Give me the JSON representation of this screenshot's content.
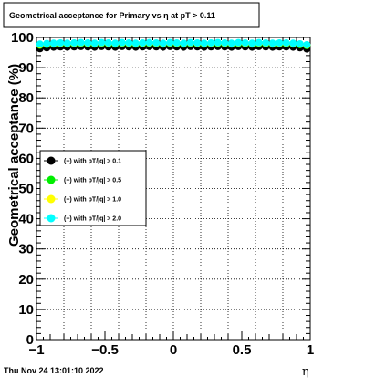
{
  "chart_data": {
    "type": "scatter",
    "title": "Geometrical acceptance for Primary vs   η at pT > 0.11",
    "xlabel": "η",
    "ylabel": "Geometrical acceptance (%)",
    "xlim": [
      -1,
      1
    ],
    "ylim": [
      0,
      100
    ],
    "x_ticks": [
      "−1",
      "−0.5",
      "0",
      "0.5",
      "1"
    ],
    "y_ticks": [
      "0",
      "10",
      "20",
      "30",
      "40",
      "50",
      "60",
      "70",
      "80",
      "90",
      "100"
    ],
    "grid": true,
    "legend_position": "center-left",
    "x": [
      -0.975,
      -0.925,
      -0.875,
      -0.825,
      -0.775,
      -0.725,
      -0.675,
      -0.625,
      -0.575,
      -0.525,
      -0.475,
      -0.425,
      -0.375,
      -0.325,
      -0.275,
      -0.225,
      -0.175,
      -0.125,
      -0.075,
      -0.025,
      0.025,
      0.075,
      0.125,
      0.175,
      0.225,
      0.275,
      0.325,
      0.375,
      0.425,
      0.475,
      0.525,
      0.575,
      0.625,
      0.675,
      0.725,
      0.775,
      0.825,
      0.875,
      0.925,
      0.975
    ],
    "series": [
      {
        "name": "(+) with pT/|q| > 0.1",
        "color": "#000000",
        "values": [
          96.3,
          96.6,
          96.8,
          96.9,
          96.8,
          96.9,
          97.0,
          96.9,
          96.8,
          97.0,
          96.9,
          96.8,
          97.0,
          96.9,
          96.8,
          96.9,
          97.0,
          96.9,
          96.8,
          97.0,
          96.9,
          96.8,
          97.0,
          96.9,
          96.8,
          96.9,
          97.0,
          96.9,
          96.8,
          97.0,
          96.9,
          96.8,
          97.0,
          96.9,
          96.8,
          96.9,
          96.9,
          96.8,
          96.6,
          96.2
        ]
      },
      {
        "name": "(+) with pT/|q| > 0.5",
        "color": "#00ee00",
        "values": [
          97.4,
          97.7,
          97.8,
          97.9,
          97.8,
          97.9,
          98.0,
          97.9,
          97.8,
          98.0,
          97.9,
          97.8,
          98.0,
          97.9,
          97.8,
          97.9,
          98.0,
          97.9,
          97.8,
          98.0,
          97.9,
          97.8,
          98.0,
          97.9,
          97.8,
          97.9,
          98.0,
          97.9,
          97.8,
          98.0,
          97.9,
          97.8,
          98.0,
          97.9,
          97.8,
          97.9,
          97.9,
          97.8,
          97.6,
          97.3
        ]
      },
      {
        "name": "(+) with pT/|q| > 1.0",
        "color": "#ffff00",
        "values": [
          97.6,
          97.9,
          98.0,
          98.1,
          98.0,
          98.1,
          98.2,
          98.1,
          98.0,
          98.2,
          98.1,
          98.0,
          98.2,
          98.1,
          98.0,
          98.1,
          98.2,
          98.1,
          98.0,
          98.2,
          98.1,
          98.0,
          98.2,
          98.1,
          98.0,
          98.1,
          98.2,
          98.1,
          98.0,
          98.2,
          98.1,
          98.0,
          98.2,
          98.1,
          98.0,
          98.1,
          98.1,
          98.0,
          97.8,
          97.5
        ]
      },
      {
        "name": "(+) with pT/|q| > 2.0",
        "color": "#00ffff",
        "values": [
          97.8,
          98.0,
          98.1,
          98.2,
          98.1,
          98.2,
          98.3,
          98.2,
          98.1,
          98.3,
          98.2,
          98.1,
          98.3,
          98.2,
          98.1,
          98.2,
          98.3,
          98.2,
          98.1,
          98.3,
          98.2,
          98.1,
          98.3,
          98.2,
          98.1,
          98.2,
          98.3,
          98.2,
          98.1,
          98.3,
          98.2,
          98.1,
          98.3,
          98.2,
          98.1,
          98.2,
          98.2,
          98.1,
          97.9,
          97.6
        ]
      }
    ]
  },
  "footer": {
    "timestamp": "Thu Nov 24 13:01:10 2022"
  }
}
